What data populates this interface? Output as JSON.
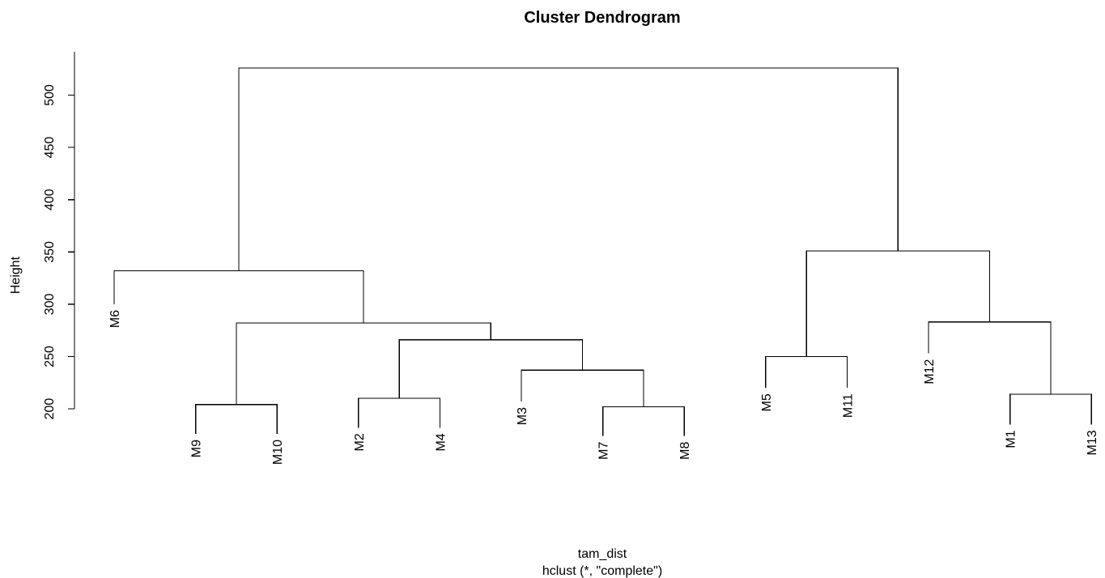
{
  "chart_data": {
    "type": "dendrogram",
    "title": "Cluster Dendrogram",
    "ylabel": "Height",
    "xlabel": "tam_dist",
    "sublabel": "hclust (*, \"complete\")",
    "ylim": [
      200,
      526
    ],
    "yticks": [
      200,
      250,
      300,
      350,
      400,
      450,
      500
    ],
    "leaves": [
      {
        "name": "M6",
        "height": 300
      },
      {
        "name": "M9",
        "height": 176
      },
      {
        "name": "M10",
        "height": 176
      },
      {
        "name": "M2",
        "height": 182
      },
      {
        "name": "M4",
        "height": 182
      },
      {
        "name": "M3",
        "height": 207
      },
      {
        "name": "M7",
        "height": 174
      },
      {
        "name": "M8",
        "height": 174
      },
      {
        "name": "M5",
        "height": 220
      },
      {
        "name": "M11",
        "height": 220
      },
      {
        "name": "M12",
        "height": 253
      },
      {
        "name": "M1",
        "height": 185
      },
      {
        "name": "M13",
        "height": 185
      }
    ],
    "merges": [
      {
        "a": "M9",
        "b": "M10",
        "height": 204
      },
      {
        "a": "M2",
        "b": "M4",
        "height": 210
      },
      {
        "a": "M7",
        "b": "M8",
        "height": 202
      },
      {
        "a": "M3",
        "b": "c3",
        "height": 237,
        "id": "c4"
      },
      {
        "a": "c2",
        "b": "c4",
        "height": 266,
        "id": "c5"
      },
      {
        "a": "c1",
        "b": "c5",
        "height": 282,
        "id": "c6"
      },
      {
        "a": "M6",
        "b": "c6",
        "height": 332,
        "id": "c7"
      },
      {
        "a": "M5",
        "b": "M11",
        "height": 250,
        "id": "c8"
      },
      {
        "a": "M1",
        "b": "M13",
        "height": 214,
        "id": "c9"
      },
      {
        "a": "M12",
        "b": "c9",
        "height": 283,
        "id": "c10"
      },
      {
        "a": "c8",
        "b": "c10",
        "height": 351,
        "id": "c11"
      },
      {
        "a": "c7",
        "b": "c11",
        "height": 526,
        "id": "c12"
      }
    ]
  }
}
